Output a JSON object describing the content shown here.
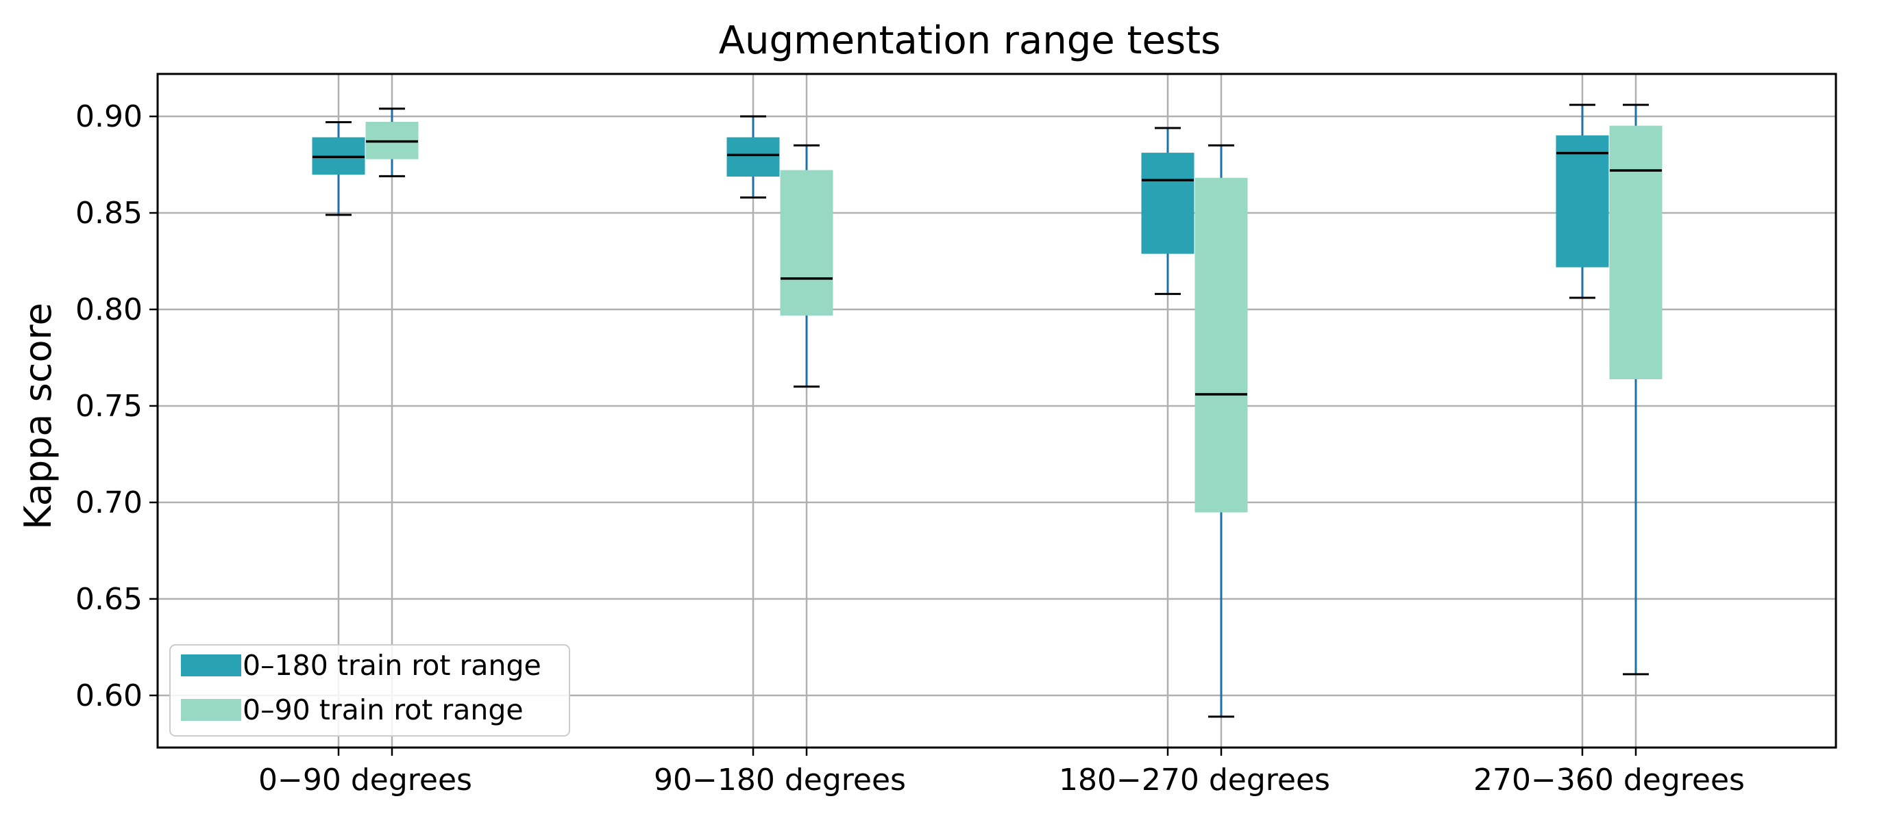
{
  "chart_data": {
    "type": "box",
    "title": "Augmentation range tests",
    "xlabel": "",
    "ylabel": "Kappa score",
    "ylim": [
      0.573,
      0.922
    ],
    "yticks": [
      "0.60",
      "0.65",
      "0.70",
      "0.75",
      "0.80",
      "0.85",
      "0.90"
    ],
    "categories": [
      "0−90 degrees",
      "90−180 degrees",
      "180−270 degrees",
      "270−360 degrees"
    ],
    "grid": true,
    "legend_position": "lower-left",
    "series": [
      {
        "name": "0–180 train rot range",
        "color": "#29a2b3",
        "boxes": [
          {
            "whisker_low": 0.849,
            "q1": 0.87,
            "median": 0.879,
            "q3": 0.889,
            "whisker_high": 0.897
          },
          {
            "whisker_low": 0.858,
            "q1": 0.869,
            "median": 0.88,
            "q3": 0.889,
            "whisker_high": 0.9
          },
          {
            "whisker_low": 0.808,
            "q1": 0.829,
            "median": 0.867,
            "q3": 0.881,
            "whisker_high": 0.894
          },
          {
            "whisker_low": 0.806,
            "q1": 0.822,
            "median": 0.881,
            "q3": 0.89,
            "whisker_high": 0.906
          }
        ]
      },
      {
        "name": "0–90 train rot range",
        "color": "#98d9c4",
        "boxes": [
          {
            "whisker_low": 0.869,
            "q1": 0.878,
            "median": 0.887,
            "q3": 0.897,
            "whisker_high": 0.904
          },
          {
            "whisker_low": 0.76,
            "q1": 0.797,
            "median": 0.816,
            "q3": 0.872,
            "whisker_high": 0.885
          },
          {
            "whisker_low": 0.589,
            "q1": 0.695,
            "median": 0.756,
            "q3": 0.868,
            "whisker_high": 0.885
          },
          {
            "whisker_low": 0.611,
            "q1": 0.764,
            "median": 0.872,
            "q3": 0.895,
            "whisker_high": 0.906
          }
        ]
      }
    ]
  }
}
